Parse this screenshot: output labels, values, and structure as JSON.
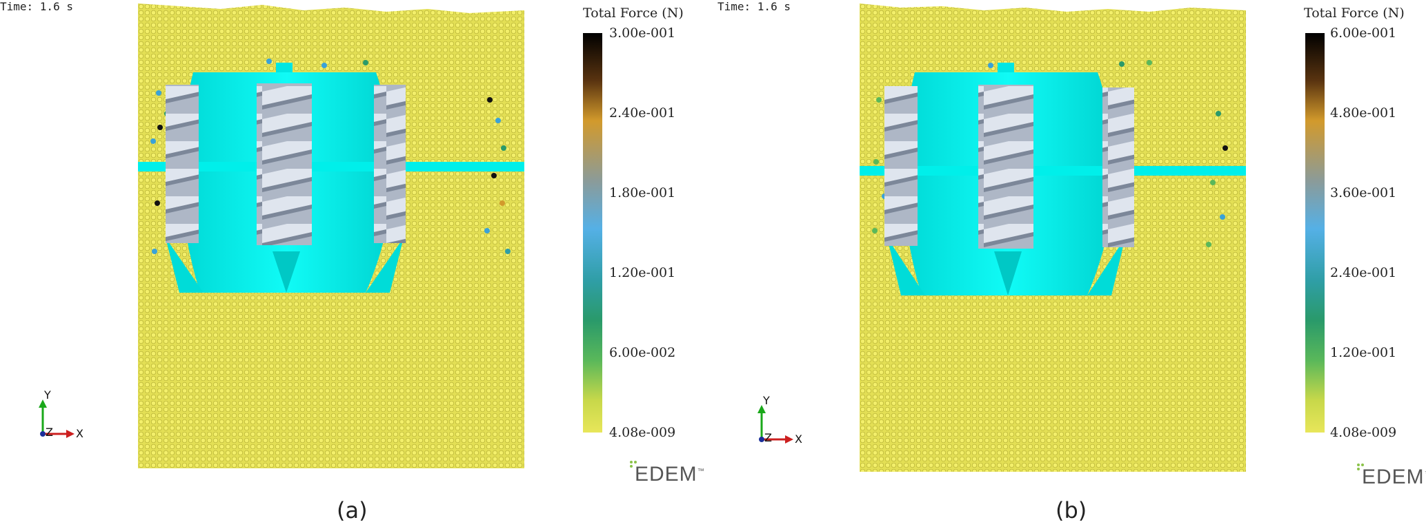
{
  "panels": [
    {
      "time": "Time: 1.6 s",
      "legend_title": "Total Force (N)",
      "ticks": [
        "3.00e-001",
        "2.40e-001",
        "1.80e-001",
        "1.20e-001",
        "6.00e-002",
        "4.08e-009"
      ],
      "caption": "(a)"
    },
    {
      "time": "Time: 1.6 s",
      "legend_title": "Total Force (N)",
      "ticks": [
        "6.00e-001",
        "4.80e-001",
        "3.60e-001",
        "2.40e-001",
        "1.20e-001",
        "4.08e-009"
      ],
      "caption": "(b)"
    }
  ],
  "axes": {
    "y": "Y",
    "z": "Z",
    "x": "X"
  },
  "logo": {
    "text": "EDEM",
    "tm": "™"
  },
  "colors": {
    "particles": "#e3df55",
    "background_particle_dark": "#b6b33a",
    "body": "#00f5f0",
    "screw": "#c3cbd8",
    "colorbar_top": "#000000",
    "colorbar_bottom": "#e8e65a"
  }
}
